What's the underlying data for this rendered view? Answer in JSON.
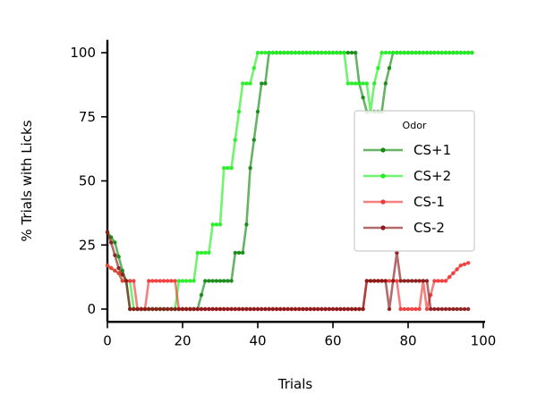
{
  "chart_data": {
    "type": "line",
    "title": "",
    "xlabel": "Trials",
    "ylabel": "% Trials with Licks",
    "xlim": [
      0,
      100
    ],
    "ylim": [
      -5,
      105
    ],
    "xticks": [
      0,
      20,
      40,
      60,
      80,
      100
    ],
    "yticks": [
      0,
      25,
      50,
      75,
      100
    ],
    "grid": false,
    "legend": {
      "title": "Odor",
      "placement": "center-right"
    },
    "series": [
      {
        "name": "CS+1",
        "color": "#138a13",
        "points": [
          [
            0,
            30
          ],
          [
            2,
            26
          ],
          [
            4,
            15
          ],
          [
            5,
            11
          ],
          [
            6,
            0
          ],
          [
            14,
            0
          ],
          [
            24,
            0
          ],
          [
            26,
            11
          ],
          [
            33,
            11
          ],
          [
            34,
            22
          ],
          [
            36,
            22
          ],
          [
            37,
            33
          ],
          [
            38,
            55
          ],
          [
            39,
            66
          ],
          [
            40,
            77
          ],
          [
            41,
            88
          ],
          [
            42,
            88
          ],
          [
            43,
            100
          ],
          [
            64,
            100
          ],
          [
            66,
            100
          ],
          [
            67,
            88
          ],
          [
            69,
            77
          ],
          [
            73,
            77
          ],
          [
            74,
            88
          ],
          [
            76,
            100
          ],
          [
            97,
            100
          ]
        ]
      },
      {
        "name": "CS+2",
        "color": "#22ee22",
        "points": [
          [
            0,
            17
          ],
          [
            3,
            14
          ],
          [
            4,
            11
          ],
          [
            6,
            11
          ],
          [
            7,
            0
          ],
          [
            18,
            0
          ],
          [
            19,
            11
          ],
          [
            23,
            11
          ],
          [
            24,
            22
          ],
          [
            27,
            22
          ],
          [
            28,
            33
          ],
          [
            30,
            33
          ],
          [
            31,
            55
          ],
          [
            33,
            55
          ],
          [
            34,
            66
          ],
          [
            35,
            77
          ],
          [
            36,
            88
          ],
          [
            38,
            88
          ],
          [
            40,
            100
          ],
          [
            63,
            100
          ],
          [
            64,
            88
          ],
          [
            69,
            88
          ],
          [
            70,
            77
          ],
          [
            71,
            88
          ],
          [
            73,
            100
          ],
          [
            97,
            100
          ]
        ]
      },
      {
        "name": "CS-1",
        "color": "#ef3a3a",
        "points": [
          [
            0,
            17
          ],
          [
            3,
            14
          ],
          [
            4,
            11
          ],
          [
            7,
            11
          ],
          [
            8,
            0
          ],
          [
            10,
            0
          ],
          [
            11,
            11
          ],
          [
            18,
            11
          ],
          [
            19,
            0
          ],
          [
            68,
            0
          ],
          [
            69,
            11
          ],
          [
            77,
            11
          ],
          [
            78,
            0
          ],
          [
            83,
            0
          ],
          [
            84,
            11
          ],
          [
            85,
            0
          ],
          [
            87,
            11
          ],
          [
            90,
            11
          ],
          [
            92,
            14
          ],
          [
            94,
            17
          ],
          [
            96,
            18
          ]
        ]
      },
      {
        "name": "CS-2",
        "color": "#8b1a1a",
        "points": [
          [
            0,
            30
          ],
          [
            1,
            26
          ],
          [
            3,
            16
          ],
          [
            5,
            11
          ],
          [
            6,
            0
          ],
          [
            68,
            0
          ],
          [
            69,
            11
          ],
          [
            74,
            11
          ],
          [
            75,
            0
          ],
          [
            76,
            11
          ],
          [
            77,
            22
          ],
          [
            78,
            11
          ],
          [
            85,
            11
          ],
          [
            86,
            0
          ],
          [
            96,
            0
          ]
        ]
      }
    ]
  }
}
